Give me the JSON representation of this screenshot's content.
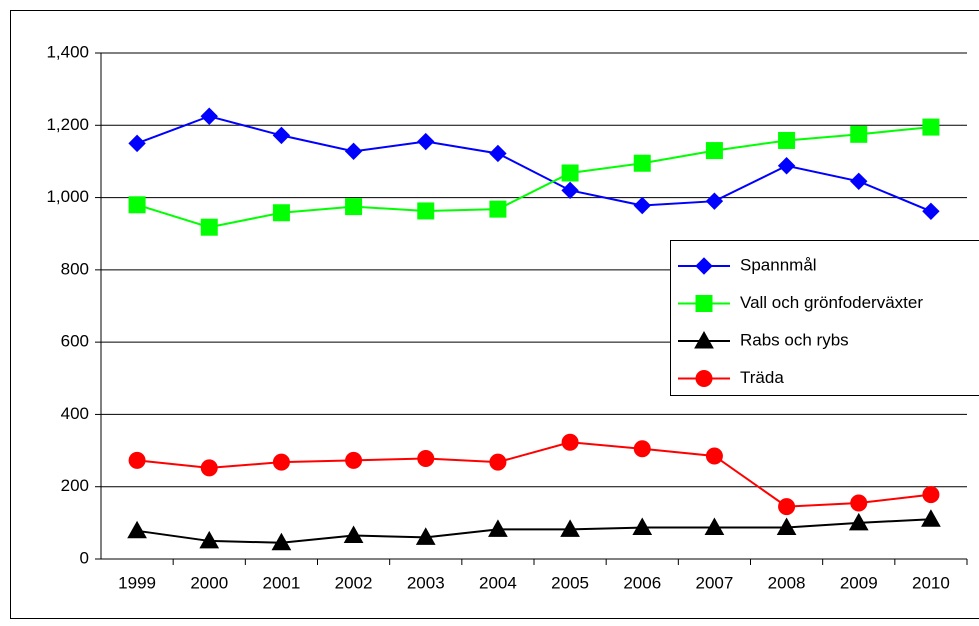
{
  "chart_data": {
    "type": "line",
    "categories": [
      "1999",
      "2000",
      "2001",
      "2002",
      "2003",
      "2004",
      "2005",
      "2006",
      "2007",
      "2008",
      "2009",
      "2010"
    ],
    "series": [
      {
        "name": "Spannmål",
        "color": "#0000ff",
        "marker": "diamond",
        "values": [
          1150,
          1225,
          1172,
          1128,
          1155,
          1122,
          1020,
          978,
          990,
          1088,
          1045,
          962
        ]
      },
      {
        "name": "Vall och grönfoderväxter",
        "color": "#00ff00",
        "marker": "square",
        "values": [
          980,
          918,
          958,
          975,
          963,
          968,
          1068,
          1095,
          1130,
          1158,
          1175,
          1195
        ]
      },
      {
        "name": "Rabs och rybs",
        "color": "#000000",
        "marker": "triangle",
        "values": [
          78,
          50,
          45,
          65,
          60,
          82,
          82,
          87,
          87,
          87,
          100,
          110
        ]
      },
      {
        "name": "Träda",
        "color": "#ff0000",
        "marker": "circle",
        "values": [
          273,
          252,
          268,
          273,
          278,
          268,
          323,
          305,
          285,
          145,
          155,
          178
        ]
      }
    ],
    "ylim": [
      0,
      1400
    ],
    "yticks": [
      0,
      200,
      400,
      600,
      800,
      {
        "value": 1000,
        "label": "1,000"
      },
      {
        "value": 1200,
        "label": "1,200"
      },
      {
        "value": 1400,
        "label": "1,400"
      }
    ],
    "grid": true,
    "legend": "right"
  }
}
